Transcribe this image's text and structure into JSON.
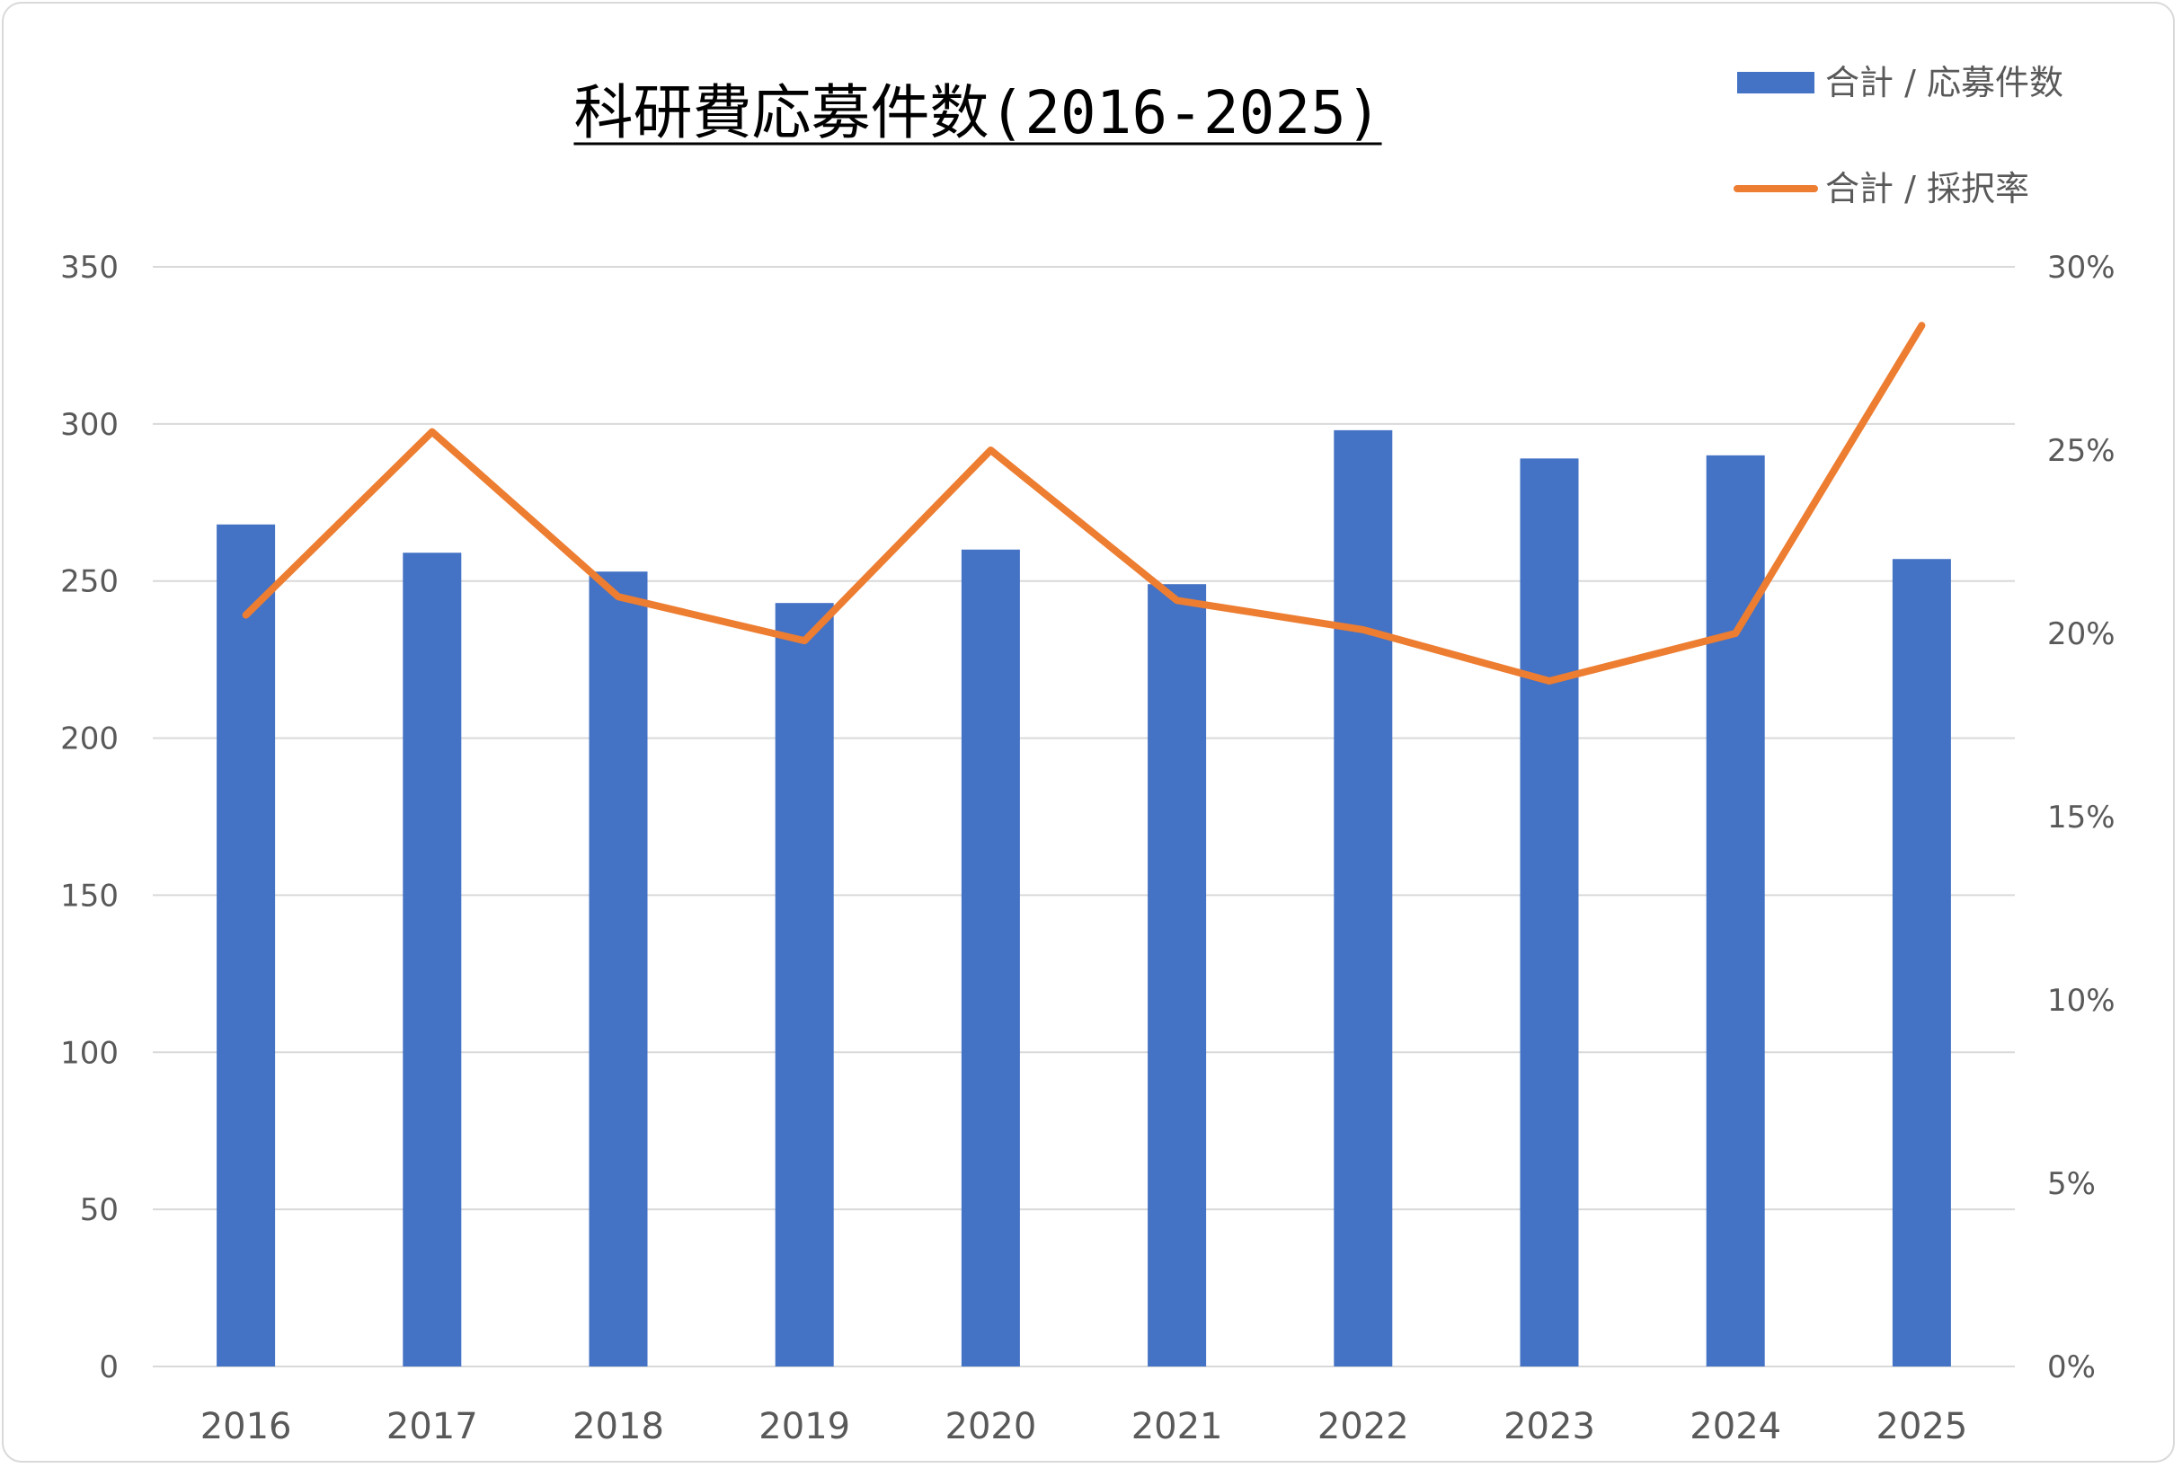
{
  "chart_data": {
    "type": "bar+line",
    "title": "科研費応募件数(2016-2025)",
    "categories": [
      "2016",
      "2017",
      "2018",
      "2019",
      "2020",
      "2021",
      "2022",
      "2023",
      "2024",
      "2025"
    ],
    "series": [
      {
        "name": "合計 / 応募件数",
        "type": "bar",
        "axis": "left",
        "color": "#4472C4",
        "values": [
          268,
          259,
          253,
          243,
          260,
          249,
          298,
          289,
          290,
          257
        ]
      },
      {
        "name": "合計 / 採択率",
        "type": "line",
        "axis": "right",
        "color": "#ED7D31",
        "values": [
          0.205,
          0.255,
          0.21,
          0.198,
          0.25,
          0.209,
          0.201,
          0.187,
          0.2,
          0.284
        ]
      }
    ],
    "y_left": {
      "ylim": [
        0,
        350
      ],
      "ticks": [
        "0",
        "50",
        "100",
        "150",
        "200",
        "250",
        "300",
        "350"
      ]
    },
    "y_right": {
      "ylim": [
        0,
        0.3
      ],
      "ticks": [
        "0%",
        "5%",
        "10%",
        "15%",
        "20%",
        "25%",
        "30%"
      ]
    },
    "xlabel": "",
    "ylabel": "",
    "grid": true,
    "legend_position": "top-right",
    "gridline_color": "#d9d9d9"
  }
}
